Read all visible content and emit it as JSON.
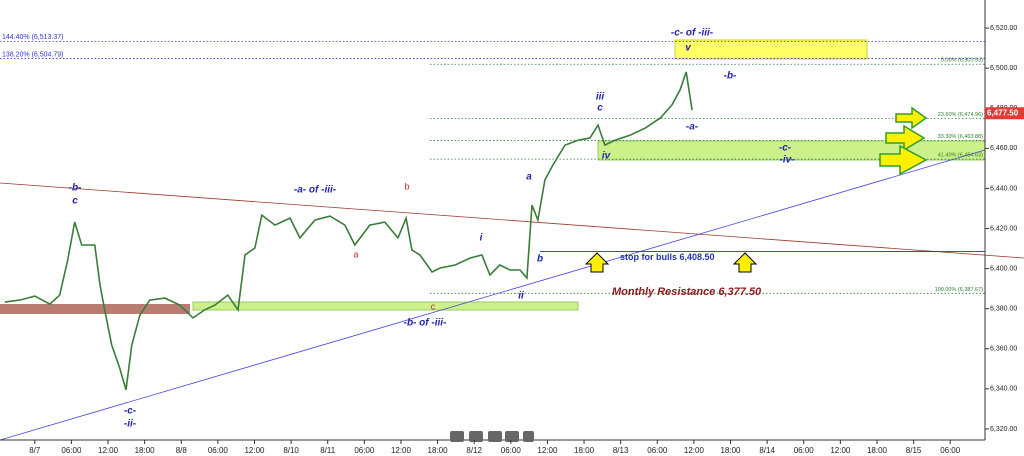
{
  "chart_data": {
    "type": "line",
    "x": [
      -0.82,
      -0.41,
      0,
      0.41,
      0.68,
      0.9,
      1.09,
      1.28,
      1.64,
      1.78,
      1.91,
      2.1,
      2.32,
      2.49,
      2.65,
      2.87,
      3.14,
      3.55,
      3.96,
      4.32,
      4.64,
      4.92,
      5.27,
      5.55,
      5.74,
      6.01,
      6.2,
      6.56,
      6.97,
      7.24,
      7.65,
      8.06,
      8.47,
      8.74,
      9.15,
      9.56,
      9.92,
      10.14,
      10.3,
      10.52,
      10.85,
      11.07,
      11.48,
      11.89,
      12.21,
      12.43,
      12.7,
      12.98,
      13.25,
      13.44,
      13.58,
      13.74,
      13.93,
      14.15,
      14.48,
      14.84,
      15.16,
      15.38,
      15.57,
      15.85,
      16.26,
      16.67,
      17.08,
      17.4,
      17.62,
      17.79,
      17.95
    ],
    "series": [
      {
        "color": "#3a7d3a",
        "values": [
          6383.3,
          6384.3,
          6386.3,
          6382.3,
          6386.8,
          6404.3,
          6423.2,
          6411.8,
          6411.8,
          6391.8,
          6379.4,
          6361.9,
          6350.4,
          6339.5,
          6361.9,
          6376.9,
          6384.3,
          6385.3,
          6381.8,
          6375.4,
          6379.4,
          6381.8,
          6386.8,
          6379.4,
          6406.8,
          6410.3,
          6426.7,
          6421.7,
          6425.2,
          6415.3,
          6424.2,
          6426.2,
          6421.7,
          6411.8,
          6421.7,
          6423.2,
          6415.3,
          6425.2,
          6409.3,
          6406.8,
          6398.3,
          6400.3,
          6401.8,
          6405.3,
          6406.8,
          6396.8,
          6401.8,
          6399.3,
          6399.3,
          6395.3,
          6431.7,
          6424.2,
          6444.2,
          6451.7,
          6461.6,
          6464.1,
          6465.1,
          6471.6,
          6461.6,
          6464.1,
          6466.6,
          6470.1,
          6475.1,
          6481.6,
          6489.1,
          6498.1,
          6479.1
        ]
      }
    ],
    "xlim": [
      -0.95,
      25.95
    ],
    "xticks": [
      {
        "value": 0,
        "label": "8/7"
      },
      {
        "value": 1,
        "label": "06:00"
      },
      {
        "value": 2,
        "label": "12:00"
      },
      {
        "value": 3,
        "label": "18:00"
      },
      {
        "value": 4,
        "label": "8/8"
      },
      {
        "value": 5,
        "label": "06:00"
      },
      {
        "value": 6,
        "label": "12:00"
      },
      {
        "value": 7,
        "label": "8/10"
      },
      {
        "value": 8,
        "label": "8/11"
      },
      {
        "value": 9,
        "label": "06:00"
      },
      {
        "value": 10,
        "label": "12:00"
      },
      {
        "value": 11,
        "label": "18:00"
      },
      {
        "value": 12,
        "label": "8/12"
      },
      {
        "value": 13,
        "label": "06:00"
      },
      {
        "value": 14,
        "label": "12:00"
      },
      {
        "value": 15,
        "label": "18:00"
      },
      {
        "value": 16,
        "label": "8/13"
      },
      {
        "value": 17,
        "label": "06:00"
      },
      {
        "value": 18,
        "label": "12:00"
      },
      {
        "value": 19,
        "label": "18:00"
      },
      {
        "value": 20,
        "label": "8/14"
      },
      {
        "value": 21,
        "label": "06:00"
      },
      {
        "value": 22,
        "label": "12:00"
      },
      {
        "value": 23,
        "label": "18:00"
      },
      {
        "value": 24,
        "label": "8/15"
      },
      {
        "value": 25,
        "label": "06:00"
      }
    ],
    "ylim": [
      6314.5,
      6534
    ],
    "yticks": [
      {
        "value": 6320,
        "label": "6,320.00"
      },
      {
        "value": 6340,
        "label": "6,340.00"
      },
      {
        "value": 6360,
        "label": "6,360.00"
      },
      {
        "value": 6380,
        "label": "6,380.00"
      },
      {
        "value": 6400,
        "label": "6,400.00"
      },
      {
        "value": 6420,
        "label": "6,420.00"
      },
      {
        "value": 6440,
        "label": "6,440.00"
      },
      {
        "value": 6460,
        "label": "6,460.00"
      },
      {
        "value": 6480,
        "label": "6,480.00"
      },
      {
        "value": 6500,
        "label": "6,500.00"
      },
      {
        "value": 6520,
        "label": "6,520.00"
      }
    ],
    "levels": [
      {
        "label": "144.40% (6,513.37)",
        "value": 6513.37,
        "color": "#3333cc"
      },
      {
        "label": "138.20% (6,504.79)",
        "value": 6504.79,
        "color": "#3333cc"
      },
      {
        "label": "0.00% (6,501.93)",
        "value": 6501.93,
        "color": "#2e7d32"
      },
      {
        "label": "23.60% (6,474.96)",
        "value": 6474.96,
        "color": "#2e7d32"
      },
      {
        "label": "33.30% (6,463.88)",
        "value": 6463.88,
        "color": "#2e7d32"
      },
      {
        "label": "41.40% (6,454.63)",
        "value": 6454.63,
        "color": "#2e7d32"
      },
      {
        "label": "100.00% (6,387.67)",
        "value": 6387.67,
        "color": "#2e7d32"
      }
    ],
    "stop": {
      "label": "stop for bulls 6,408.50",
      "value": 6408.5
    },
    "current_price": {
      "label": "6,477.50",
      "value": 6477.5
    },
    "annotations": [
      "-b-",
      "c",
      "-c-",
      "-ii-",
      "-a- of -iii-",
      "b",
      "a",
      "c",
      "-b- of -iii-",
      "i",
      "ii",
      "a",
      "b",
      "iii",
      "c",
      "iv",
      "v",
      "-c- of -iii-",
      "-b-",
      "-a-",
      "-c-",
      "-iv-",
      "Monthly Resistance 6,377.50"
    ]
  }
}
